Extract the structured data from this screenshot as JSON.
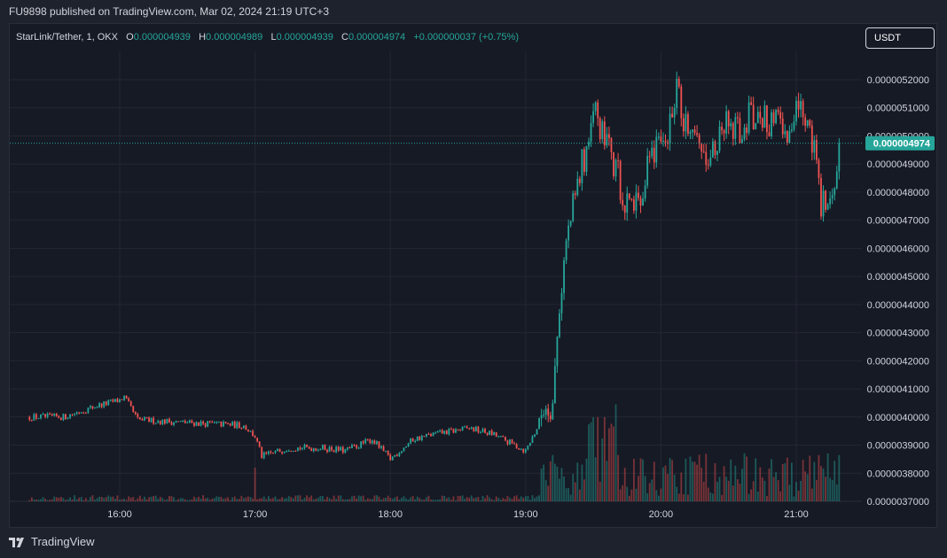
{
  "publisher": "FU9898 published on TradingView.com, Mar 02, 2024 21:19 UTC+3",
  "legend": {
    "symbol": "StarLink/Tether, 1, OKX",
    "o_label": "O",
    "o_value": "0.000004939",
    "h_label": "H",
    "h_value": "0.000004989",
    "l_label": "L",
    "l_value": "0.000004939",
    "c_label": "C",
    "c_value": "0.000004974",
    "change": "+0.000000037 (+0.75%)"
  },
  "currency_button": "USDT",
  "brand": "TradingView",
  "chart_data": {
    "type": "candlestick",
    "interval_minutes": 1,
    "x_ticks": [
      "16:00",
      "17:00",
      "18:00",
      "19:00",
      "20:00",
      "21:00"
    ],
    "y_ticks": [
      "0.0000037000",
      "0.0000038000",
      "0.0000039000",
      "0.0000040000",
      "0.0000041000",
      "0.0000042000",
      "0.0000043000",
      "0.0000044000",
      "0.0000045000",
      "0.0000046000",
      "0.0000047000",
      "0.0000048000",
      "0.0000049000",
      "0.0000050000",
      "0.0000051000",
      "0.0000052000"
    ],
    "ylim": [
      3.7e-06,
      5.3e-06
    ],
    "last_price": "0.000004974",
    "price_path": [
      [
        "15:20",
        4e-06
      ],
      [
        "15:35",
        4e-06
      ],
      [
        "15:50",
        4.04e-06
      ],
      [
        "16:00",
        4.06e-06
      ],
      [
        "16:02",
        4.07e-06
      ],
      [
        "16:08",
        3.99e-06
      ],
      [
        "16:30",
        3.98e-06
      ],
      [
        "16:55",
        3.97e-06
      ],
      [
        "17:00",
        3.93e-06
      ],
      [
        "17:03",
        3.86e-06
      ],
      [
        "17:15",
        3.89e-06
      ],
      [
        "17:30",
        3.89e-06
      ],
      [
        "17:40",
        3.88e-06
      ],
      [
        "17:52",
        3.92e-06
      ],
      [
        "18:00",
        3.85e-06
      ],
      [
        "18:10",
        3.92e-06
      ],
      [
        "18:20",
        3.94e-06
      ],
      [
        "18:35",
        3.96e-06
      ],
      [
        "18:45",
        3.94e-06
      ],
      [
        "18:55",
        3.9e-06
      ],
      [
        "19:00",
        3.88e-06
      ],
      [
        "19:05",
        3.96e-06
      ],
      [
        "19:08",
        4.04e-06
      ],
      [
        "19:12",
        4.05e-06
      ],
      [
        "19:15",
        4.4e-06
      ],
      [
        "19:18",
        4.62e-06
      ],
      [
        "19:22",
        4.78e-06
      ],
      [
        "19:25",
        4.9e-06
      ],
      [
        "19:29",
        5e-06
      ],
      [
        "19:31",
        5.13e-06
      ],
      [
        "19:35",
        4.96e-06
      ],
      [
        "19:40",
        4.9e-06
      ],
      [
        "19:44",
        4.76e-06
      ],
      [
        "19:48",
        4.74e-06
      ],
      [
        "19:52",
        4.82e-06
      ],
      [
        "19:55",
        4.91e-06
      ],
      [
        "19:58",
        4.99e-06
      ],
      [
        "20:02",
        4.95e-06
      ],
      [
        "20:05",
        5.08e-06
      ],
      [
        "20:07",
        5.18e-06
      ],
      [
        "20:10",
        5.03e-06
      ],
      [
        "20:15",
        5e-06
      ],
      [
        "20:20",
        4.95e-06
      ],
      [
        "20:25",
        4.96e-06
      ],
      [
        "20:30",
        5.06e-06
      ],
      [
        "20:35",
        5.02e-06
      ],
      [
        "20:40",
        5.07e-06
      ],
      [
        "20:45",
        5.05e-06
      ],
      [
        "20:50",
        5.06e-06
      ],
      [
        "20:55",
        5e-06
      ],
      [
        "21:00",
        5.09e-06
      ],
      [
        "21:05",
        5.05e-06
      ],
      [
        "21:08",
        4.97e-06
      ],
      [
        "21:10",
        4.8e-06
      ],
      [
        "21:13",
        4.72e-06
      ],
      [
        "21:17",
        4.86e-06
      ],
      [
        "21:19",
        4.974e-06
      ]
    ],
    "volume": "shown as histogram bars; elevated 19:00–21:00 session, spike near 17:00"
  },
  "colors": {
    "background": "#161a25",
    "frame": "#1e222d",
    "grid": "#242733",
    "up": "#26a69a",
    "down": "#ef5350",
    "price_tag": "#26a69a"
  }
}
